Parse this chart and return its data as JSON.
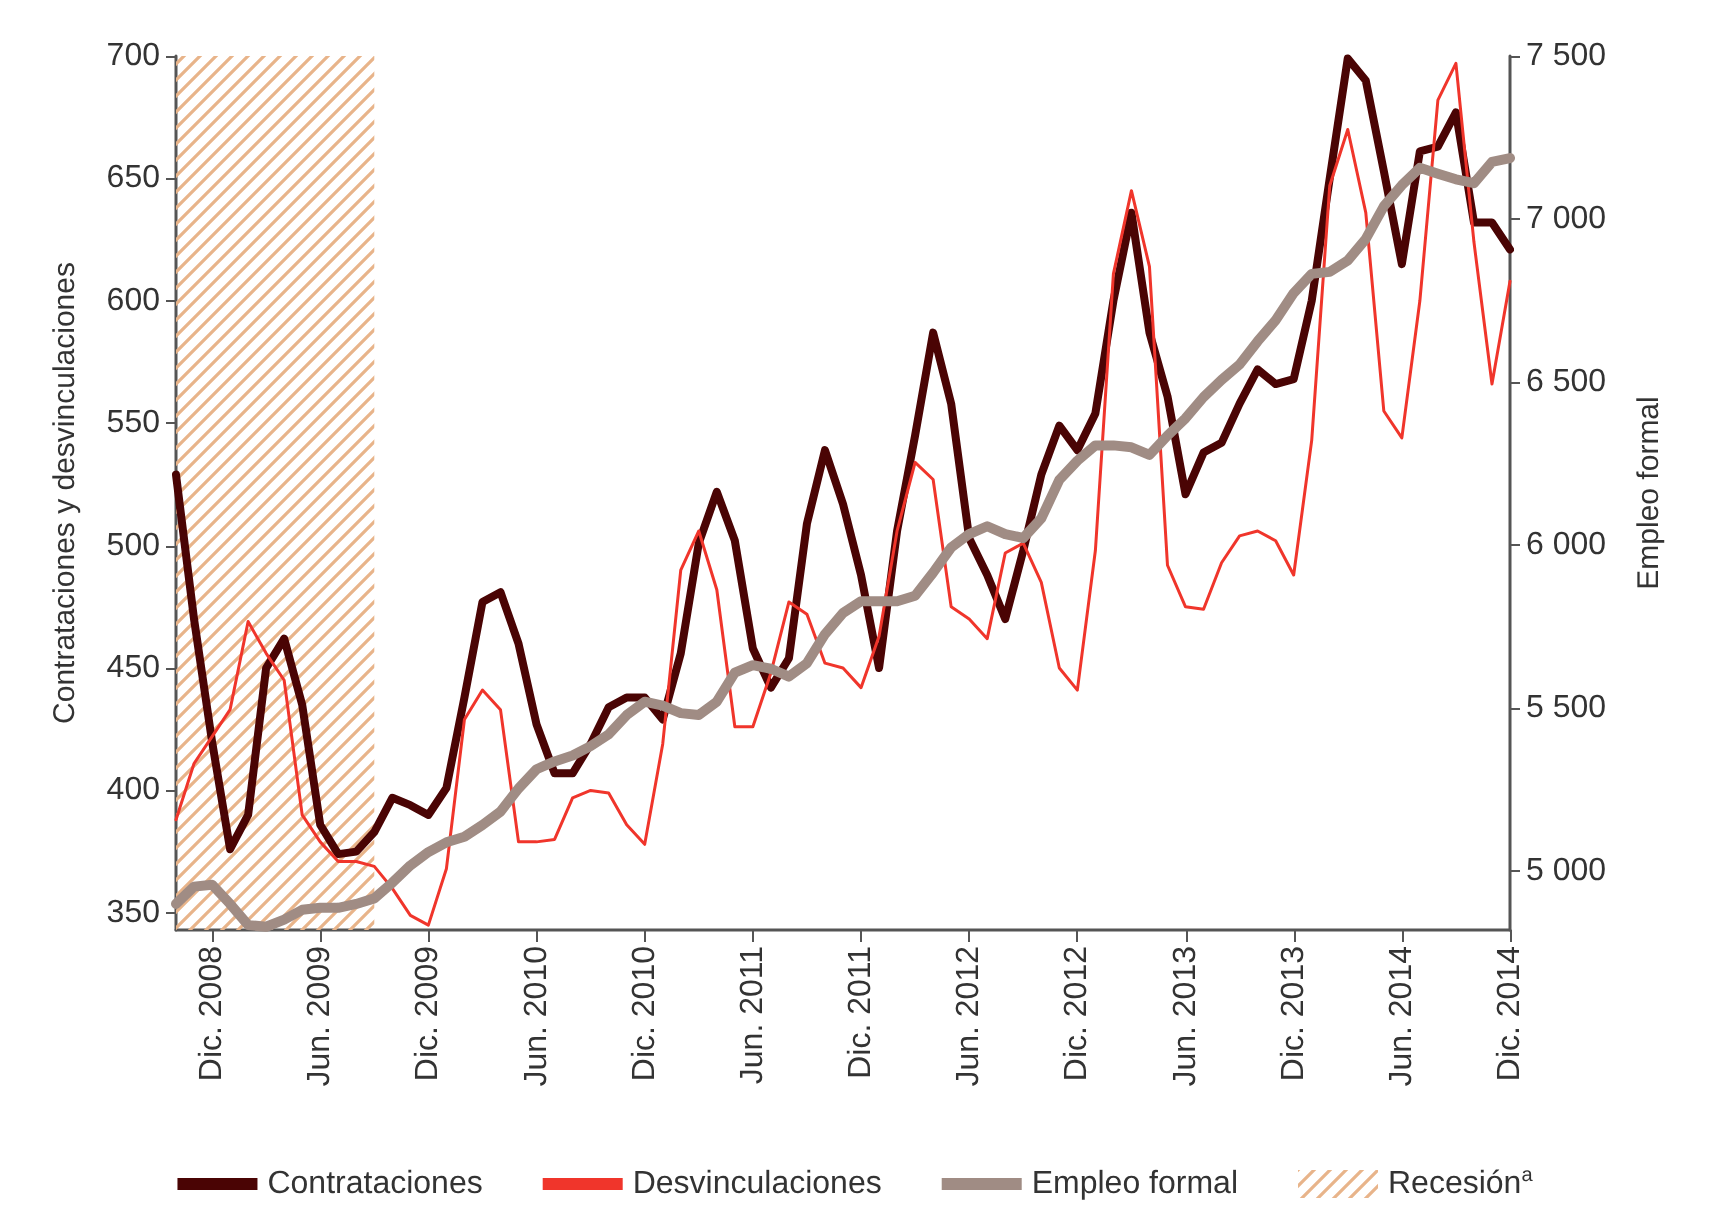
{
  "chart_data": {
    "type": "line",
    "ylabel": "Contrataciones y desvinculaciones",
    "y2label": "Empleo formal",
    "x": [
      "2008-10",
      "2008-11",
      "2008-12",
      "2009-01",
      "2009-02",
      "2009-03",
      "2009-04",
      "2009-05",
      "2009-06",
      "2009-07",
      "2009-08",
      "2009-09",
      "2009-10",
      "2009-11",
      "2009-12",
      "2010-01",
      "2010-02",
      "2010-03",
      "2010-04",
      "2010-05",
      "2010-06",
      "2010-07",
      "2010-08",
      "2010-09",
      "2010-10",
      "2010-11",
      "2010-12",
      "2011-01",
      "2011-02",
      "2011-03",
      "2011-04",
      "2011-05",
      "2011-06",
      "2011-07",
      "2011-08",
      "2011-09",
      "2011-10",
      "2011-11",
      "2011-12",
      "2012-01",
      "2012-02",
      "2012-03",
      "2012-04",
      "2012-05",
      "2012-06",
      "2012-07",
      "2012-08",
      "2012-09",
      "2012-10",
      "2012-11",
      "2012-12",
      "2013-01",
      "2013-02",
      "2013-03",
      "2013-04",
      "2013-05",
      "2013-06",
      "2013-07",
      "2013-08",
      "2013-09",
      "2013-10",
      "2013-11",
      "2013-12",
      "2014-01",
      "2014-02",
      "2014-03",
      "2014-04",
      "2014-05",
      "2014-06",
      "2014-07",
      "2014-08",
      "2014-09",
      "2014-10",
      "2014-11",
      "2014-12"
    ],
    "series": [
      {
        "name": "Contrataciones",
        "color": "#4a0404",
        "values": [
          529,
          470,
          420,
          376,
          390,
          450,
          462,
          435,
          386,
          374,
          375,
          383,
          397,
          394,
          390,
          401,
          438,
          477,
          481,
          460,
          427,
          407,
          407,
          419,
          434,
          438,
          438,
          429,
          456,
          501,
          522,
          502,
          458,
          442,
          454,
          509,
          539,
          517,
          488,
          450,
          506,
          545,
          587,
          558,
          503,
          488,
          470,
          498,
          529,
          549,
          539,
          554,
          600,
          636,
          587,
          561,
          521,
          538,
          542,
          558,
          572,
          566,
          568,
          600,
          650,
          699,
          690,
          653,
          615,
          661,
          663,
          677,
          632,
          632,
          621
        ]
      },
      {
        "name": "Desvinculaciones",
        "color": "#f0352b",
        "values": [
          388,
          411,
          422,
          433,
          469,
          456,
          445,
          390,
          379,
          371,
          371,
          369,
          360,
          349,
          345,
          368,
          429,
          441,
          433,
          379,
          379,
          380,
          397,
          400,
          399,
          386,
          378,
          419,
          490,
          506,
          482,
          426,
          426,
          448,
          477,
          472,
          452,
          450,
          442,
          463,
          506,
          534,
          527,
          475,
          470,
          462,
          497,
          501,
          485,
          450,
          441,
          498,
          611,
          645,
          614,
          492,
          475,
          474,
          493,
          504,
          506,
          502,
          488,
          543,
          647,
          670,
          636,
          555,
          544,
          600,
          682,
          697,
          624,
          566,
          608
        ]
      },
      {
        "name": "Empleo formal",
        "color": "#a08c84",
        "axis": "y2",
        "values": [
          4900,
          4953,
          4959,
          4900,
          4835,
          4830,
          4852,
          4882,
          4888,
          4888,
          4900,
          4917,
          4965,
          5018,
          5059,
          5089,
          5106,
          5142,
          5183,
          5254,
          5313,
          5337,
          5355,
          5384,
          5420,
          5479,
          5520,
          5508,
          5485,
          5479,
          5520,
          5609,
          5632,
          5621,
          5597,
          5638,
          5727,
          5792,
          5828,
          5828,
          5828,
          5845,
          5916,
          5993,
          6034,
          6058,
          6034,
          6022,
          6082,
          6200,
          6259,
          6306,
          6306,
          6300,
          6277,
          6336,
          6389,
          6454,
          6507,
          6554,
          6625,
          6690,
          6773,
          6832,
          6838,
          6873,
          6939,
          7039,
          7104,
          7157,
          7139,
          7122,
          7110,
          7175,
          7187
        ]
      }
    ],
    "xlim": [
      "2008-10",
      "2014-12"
    ],
    "xticks": [
      {
        "value": "2008-12",
        "label": "Dic. 2008"
      },
      {
        "value": "2009-06",
        "label": "Jun. 2009"
      },
      {
        "value": "2009-12",
        "label": "Dic. 2009"
      },
      {
        "value": "2010-06",
        "label": "Jun. 2010"
      },
      {
        "value": "2010-12",
        "label": "Dic. 2010"
      },
      {
        "value": "2011-06",
        "label": "Jun. 2011"
      },
      {
        "value": "2011-12",
        "label": "Dic. 2011"
      },
      {
        "value": "2012-06",
        "label": "Jun. 2012"
      },
      {
        "value": "2012-12",
        "label": "Dic. 2012"
      },
      {
        "value": "2013-06",
        "label": "Jun. 2013"
      },
      {
        "value": "2013-12",
        "label": "Dic. 2013"
      },
      {
        "value": "2014-06",
        "label": "Jun. 2014"
      },
      {
        "value": "2014-12",
        "label": "Dic. 2014"
      }
    ],
    "ylim": [
      343,
      700
    ],
    "yticks": [
      350,
      400,
      450,
      500,
      550,
      600,
      650,
      700
    ],
    "y2lim": [
      4820,
      7500
    ],
    "y2ticks": [
      {
        "value": 5000,
        "label": "5 000"
      },
      {
        "value": 5500,
        "label": "5 500"
      },
      {
        "value": 6000,
        "label": "6 000"
      },
      {
        "value": 6500,
        "label": "6 500"
      },
      {
        "value": 7000,
        "label": "7 000"
      },
      {
        "value": 7500,
        "label": "7 500"
      }
    ],
    "bands": [
      {
        "axis": "x",
        "from": "2008-10",
        "to": "2009-09",
        "label": "Recesión$^{a}$",
        "color": "#e8b48a"
      }
    ],
    "grid": false,
    "legend": "bottom"
  }
}
